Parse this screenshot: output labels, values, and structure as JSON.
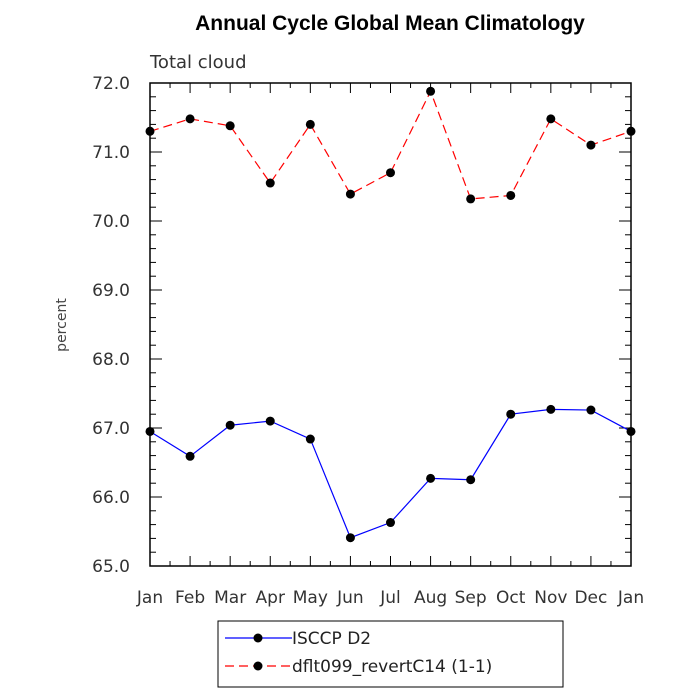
{
  "chart_data": {
    "type": "line",
    "title": "Annual Cycle Global Mean Climatology",
    "subtitle": "Total cloud",
    "xlabel": "",
    "ylabel": "percent",
    "categories": [
      "Jan",
      "Feb",
      "Mar",
      "Apr",
      "May",
      "Jun",
      "Jul",
      "Aug",
      "Sep",
      "Oct",
      "Nov",
      "Dec",
      "Jan"
    ],
    "ylim": [
      65.0,
      72.0
    ],
    "yticks": [
      "65.0",
      "66.0",
      "67.0",
      "68.0",
      "69.0",
      "70.0",
      "71.0",
      "72.0"
    ],
    "grid": false,
    "legend_position": "bottom-center",
    "series": [
      {
        "name": "ISCCP D2",
        "color": "#0000ff",
        "line_style": "solid",
        "marker": "filled-circle",
        "values": [
          66.95,
          66.59,
          67.04,
          67.1,
          66.84,
          65.41,
          65.63,
          66.27,
          66.25,
          67.2,
          67.27,
          67.26,
          66.95
        ]
      },
      {
        "name": "dflt099_revertC14 (1-1)",
        "color": "#ff0000",
        "line_style": "dashed",
        "marker": "filled-circle",
        "values": [
          71.3,
          71.48,
          71.38,
          70.55,
          71.4,
          70.39,
          70.7,
          71.88,
          70.32,
          70.37,
          71.48,
          71.1,
          71.3
        ]
      }
    ]
  }
}
